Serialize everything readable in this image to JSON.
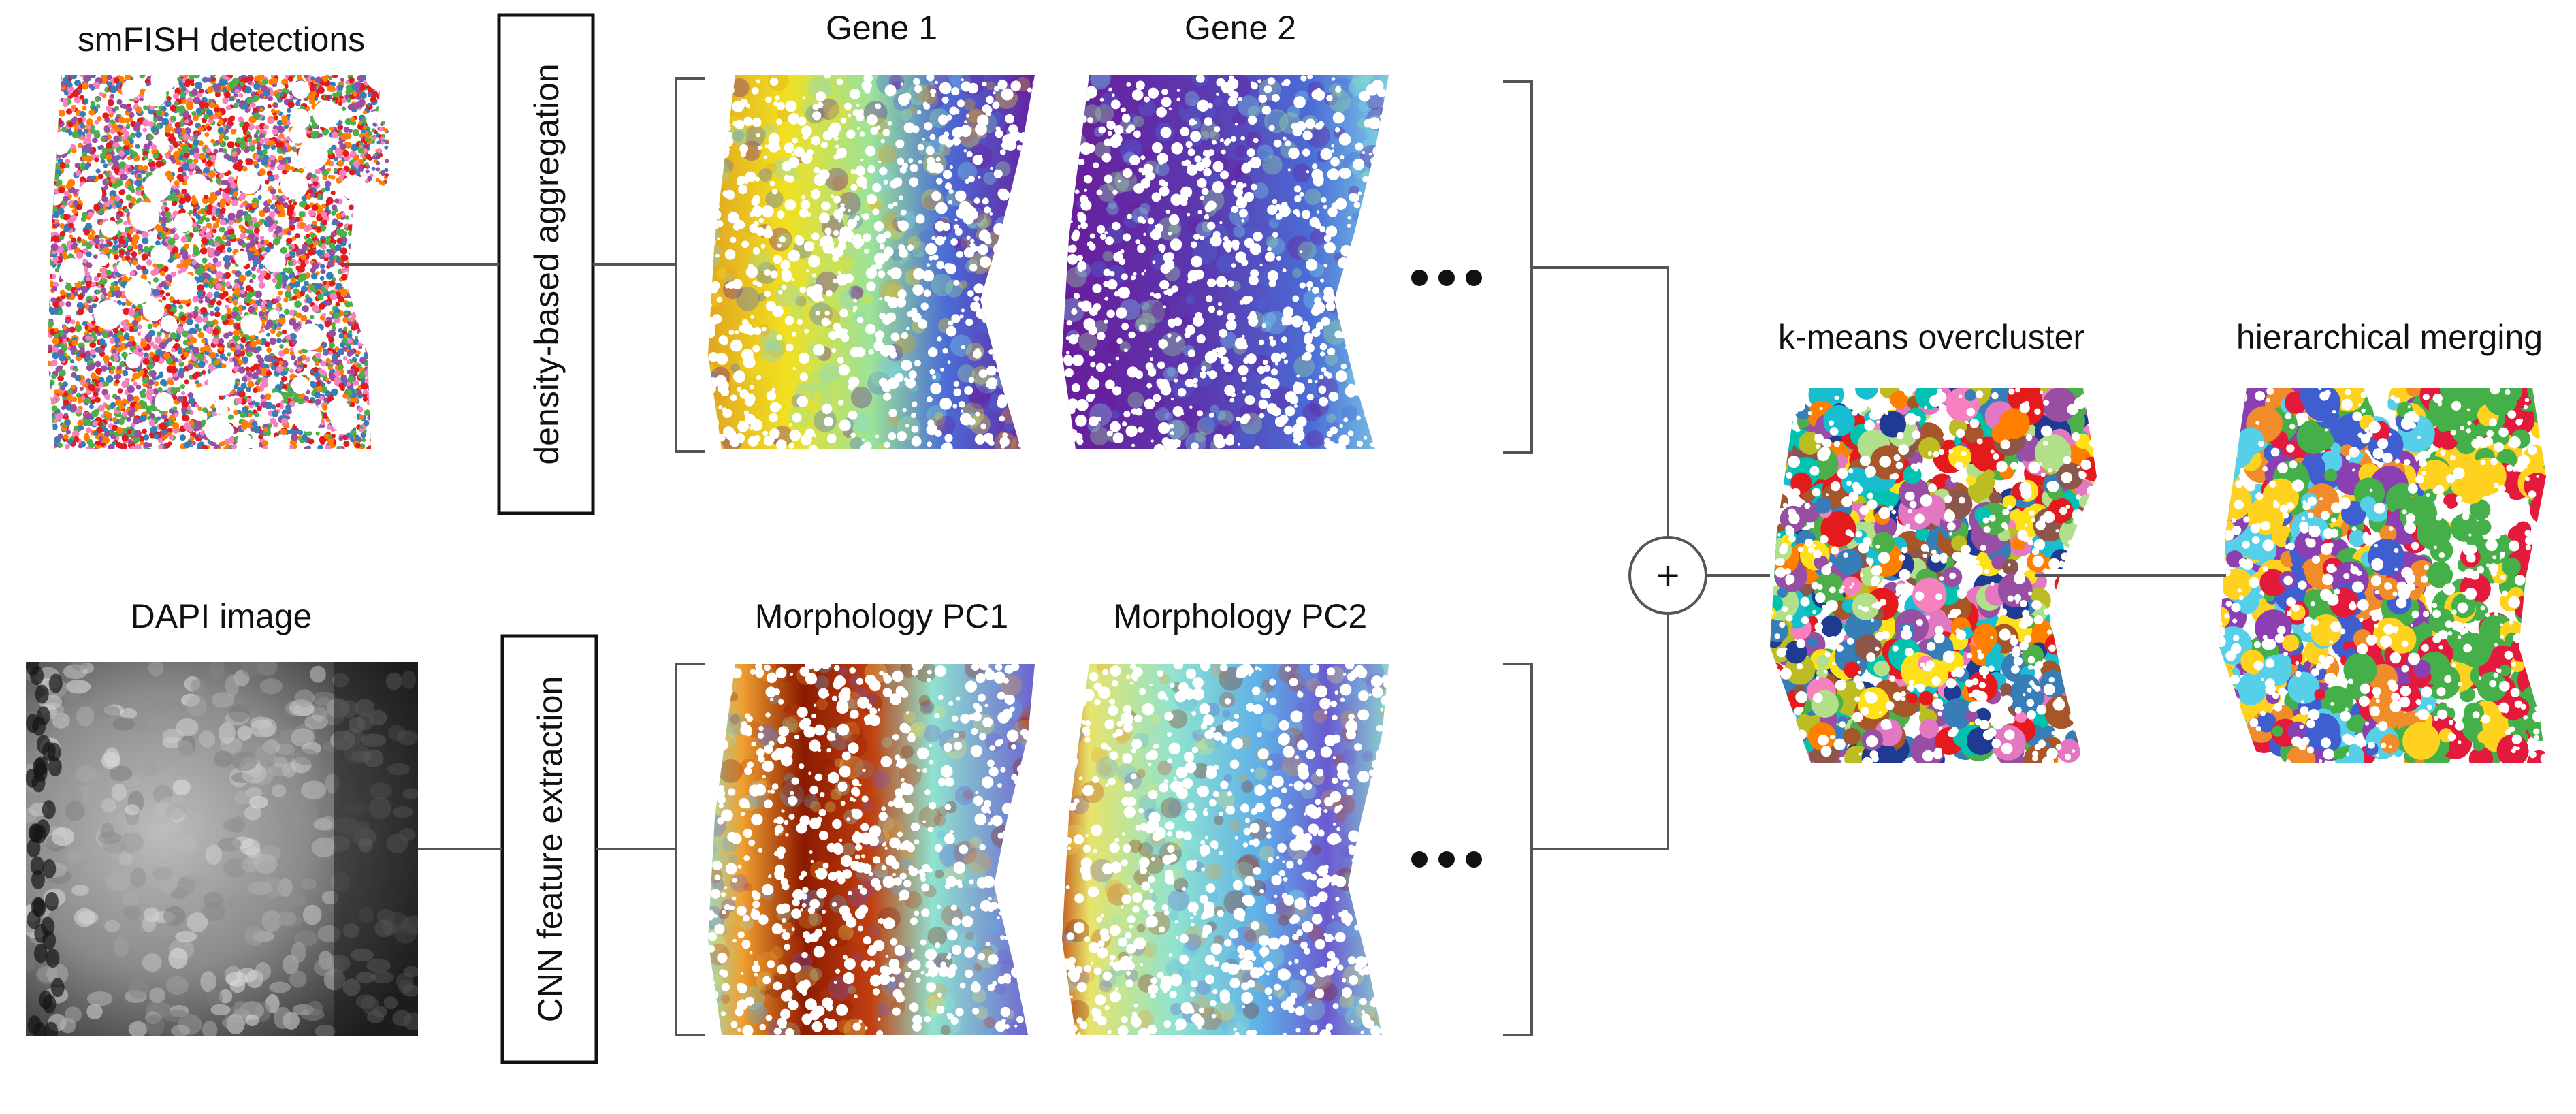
{
  "labels": {
    "smfish_title": "smFISH detections",
    "dapi_title": "DAPI image",
    "gene1": "Gene 1",
    "gene2": "Gene 2",
    "morph_pc1": "Morphology PC1",
    "morph_pc2": "Morphology PC2",
    "kmeans": "k-means overcluster",
    "hier": "hierarchical merging",
    "density_box": "density-based aggregation",
    "cnn_box": "CNN feature extraction",
    "plus": "+"
  },
  "colors": {
    "smfish_points": [
      "#e41a1c",
      "#4daf4a",
      "#f781bf",
      "#377eb8",
      "#984ea3",
      "#ff7f00"
    ],
    "gene_ramp": [
      "#6a1b9a",
      "#4b6cd6",
      "#7fd6e6",
      "#9be39a",
      "#f2e020",
      "#e0a020"
    ],
    "morph_ramp": [
      "#6a5ad0",
      "#5fb0e8",
      "#8fe3d0",
      "#e8e46a",
      "#f0a030",
      "#c04010",
      "#8b1a00"
    ],
    "kmeans_palette": [
      "#e41a1c",
      "#377eb8",
      "#4daf4a",
      "#984ea3",
      "#ff7f00",
      "#ffe11a",
      "#a65628",
      "#f781bf",
      "#17becf",
      "#1f3a93",
      "#b2df8a",
      "#e377c2",
      "#8c564b",
      "#bcbd22",
      "#00c2b0"
    ],
    "hier_palette": [
      "#ffd21f",
      "#3f5fd0",
      "#45b04a",
      "#e41a3c",
      "#f08c2a",
      "#8b3fb0",
      "#55d0e8"
    ],
    "dapi_dark": "#111111",
    "dapi_light": "#d8d8d8"
  },
  "icons": {
    "ellipsis_top": "ellipsis-icon",
    "ellipsis_bottom": "ellipsis-icon",
    "combine": "plus-icon"
  }
}
